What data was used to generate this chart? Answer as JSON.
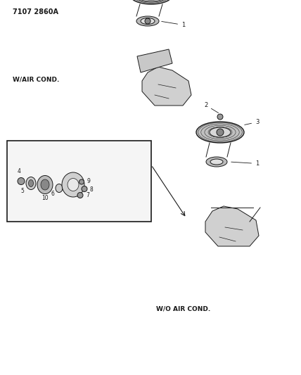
{
  "title_code": "7107 2860A",
  "background_color": "#ffffff",
  "label_wair": "W/AIR COND.",
  "label_woair": "W/O AIR COND.",
  "part_numbers_top": [
    "1",
    "2",
    "3"
  ],
  "part_numbers_bottom": [
    "1",
    "2",
    "3"
  ],
  "part_numbers_inset": [
    "4",
    "5",
    "6",
    "7",
    "8",
    "9",
    "10"
  ],
  "line_color": "#1a1a1a",
  "fig_width": 4.28,
  "fig_height": 5.33,
  "dpi": 100
}
